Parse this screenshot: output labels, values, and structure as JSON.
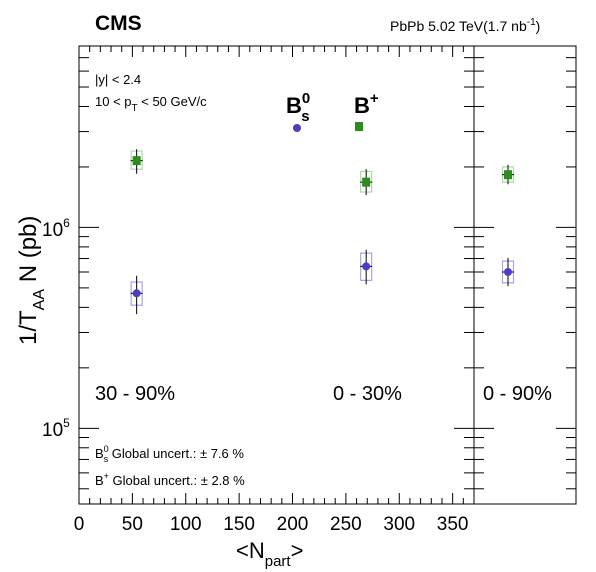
{
  "header": {
    "experiment": "CMS",
    "collision_main": "PbPb 5.02 TeV(1.7 nb",
    "collision_sup": "-1",
    "collision_end": ")"
  },
  "selection": {
    "rapidity": "|y| < 2.4",
    "pt_pre": "10 < p",
    "pt_sub": "T",
    "pt_post": " < 50 GeV/c"
  },
  "legend": {
    "bs_label": "B",
    "bs_sub": "s",
    "bs_sup": "0",
    "bplus_label": "B",
    "bplus_sup": "+"
  },
  "global_uncert": {
    "bs_pre": "B",
    "bs_sub": "s",
    "bs_sup": "0",
    "bs_text": " Global uncert.: ± 7.6 %",
    "bp_pre": "B",
    "bp_sup": "+",
    "bp_text": " Global uncert.: ± 2.8 %"
  },
  "axes": {
    "ylabel_pre": "1/T",
    "ylabel_sub": "AA",
    "ylabel_post": " N (pb)",
    "xlabel_pre": "<N",
    "xlabel_sub": "part",
    "xlabel_post": ">",
    "ytick_base": "10",
    "ytick_exp6": "6",
    "ytick_exp5": "5"
  },
  "chart_data": {
    "type": "scatter",
    "x_label": "<N_part>",
    "y_label": "1/T_AA N (pb)",
    "xlim": [
      0,
      370
    ],
    "ylim": [
      42000,
      8000000
    ],
    "y_scale": "log",
    "x_ticks": [
      0,
      50,
      100,
      150,
      200,
      250,
      300,
      350
    ],
    "y_ticks": [
      100000,
      1000000
    ],
    "centrality_labels": {
      "peripheral": "30 - 90%",
      "central": "0 - 30%",
      "integrated": "0 - 90%"
    },
    "series": [
      {
        "name": "B_s^0",
        "color": "#4a3fc0",
        "marker": "circle",
        "points": [
          {
            "x": 54,
            "y": 470000,
            "stat_lo": 370000,
            "stat_hi": 575000,
            "sys_lo": 410000,
            "sys_hi": 535000
          },
          {
            "x": 269,
            "y": 640000,
            "stat_lo": 520000,
            "stat_hi": 775000,
            "sys_lo": 545000,
            "sys_hi": 745000
          }
        ],
        "integrated": {
          "y": 600000,
          "stat_lo": 510000,
          "stat_hi": 705000,
          "sys_lo": 530000,
          "sys_hi": 680000
        }
      },
      {
        "name": "B^+",
        "color": "#2e8b1e",
        "marker": "square",
        "points": [
          {
            "x": 54,
            "y": 2150000,
            "stat_lo": 1850000,
            "stat_hi": 2450000,
            "sys_lo": 1950000,
            "sys_hi": 2400000
          },
          {
            "x": 269,
            "y": 1680000,
            "stat_lo": 1450000,
            "stat_hi": 1950000,
            "sys_lo": 1500000,
            "sys_hi": 1900000
          }
        ],
        "integrated": {
          "y": 1830000,
          "stat_lo": 1640000,
          "stat_hi": 2050000,
          "sys_lo": 1680000,
          "sys_hi": 2000000
        }
      }
    ]
  }
}
